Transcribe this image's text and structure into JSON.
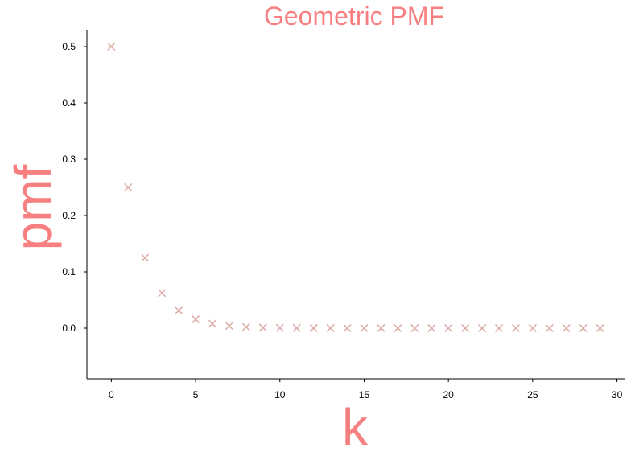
{
  "chart_data": {
    "type": "scatter",
    "title": "Geometric PMF",
    "xlabel": "k",
    "ylabel": "pmf",
    "xlim": [
      -1.45,
      30.45
    ],
    "ylim": [
      -0.09,
      0.53
    ],
    "xticks": [
      0,
      5,
      10,
      15,
      20,
      25,
      30
    ],
    "yticks": [
      0.0,
      0.1,
      0.2,
      0.3,
      0.4,
      0.5
    ],
    "ytick_labels": [
      "0.0",
      "0.1",
      "0.2",
      "0.3",
      "0.4",
      "0.5"
    ],
    "grid": false,
    "marker": "x",
    "colors": {
      "title": "#f87f7f",
      "labels": "#f87f7f",
      "marker": "#dba9a3",
      "axis": "#000000"
    },
    "x": [
      0,
      1,
      2,
      3,
      4,
      5,
      6,
      7,
      8,
      9,
      10,
      11,
      12,
      13,
      14,
      15,
      16,
      17,
      18,
      19,
      20,
      21,
      22,
      23,
      24,
      25,
      26,
      27,
      28,
      29
    ],
    "y": [
      0.5,
      0.25,
      0.125,
      0.0625,
      0.03125,
      0.015625,
      0.0078125,
      0.00390625,
      0.001953125,
      0.0009765625,
      0.00048828125,
      0.000244140625,
      0.0001220703125,
      6.103515625e-05,
      3.0517578125e-05,
      1.52587890625e-05,
      7.62939453125e-06,
      3.814697265625e-06,
      1.9073486328125e-06,
      9.5367431640625e-07,
      4.76837158203125e-07,
      2.384185791015625e-07,
      1.1920928955078125e-07,
      5.960464477539063e-08,
      2.9802322387695312e-08,
      1.4901161193847656e-08,
      7.450580596923828e-09,
      3.725290298461914e-09,
      1.862645149230957e-09,
      9.313225746154785e-10
    ]
  }
}
